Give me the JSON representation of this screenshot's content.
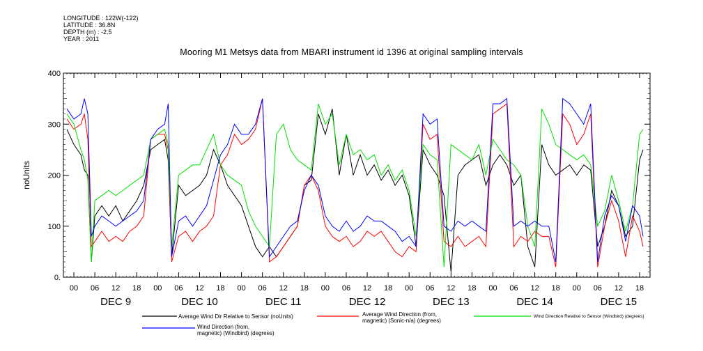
{
  "metadata": {
    "longitude": "LONGITUDE : 122W(-122)",
    "latitude": "LATITUDE : 36.8N",
    "depth": "DEPTH (m) : -2.5",
    "year": "YEAR : 2011"
  },
  "colors": {
    "avg_wind_dir_sensor": "#000000",
    "avg_wind_direction": "#ff0000",
    "wind_dir_windbird": "#0000ff",
    "wind_dir_sensor_windbird": "#00e000"
  },
  "chart_data": {
    "type": "line",
    "title": "Mooring M1 Metsys data from MBARI instrument id 1396 at original sampling intervals",
    "ylabel": "noUnits",
    "xlabel": "",
    "ylim": [
      0,
      400
    ],
    "y_ticks": [
      "0.",
      "100",
      "200",
      "300",
      "400"
    ],
    "xlim": [
      -3,
      165
    ],
    "x_hour_ticks": [
      {
        "h": 0,
        "label": "00"
      },
      {
        "h": 6,
        "label": "06"
      },
      {
        "h": 12,
        "label": "12"
      },
      {
        "h": 18,
        "label": "18"
      },
      {
        "h": 24,
        "label": "00"
      },
      {
        "h": 30,
        "label": "06"
      },
      {
        "h": 36,
        "label": "12"
      },
      {
        "h": 42,
        "label": "18"
      },
      {
        "h": 48,
        "label": "00"
      },
      {
        "h": 54,
        "label": "06"
      },
      {
        "h": 60,
        "label": "12"
      },
      {
        "h": 66,
        "label": "18"
      },
      {
        "h": 72,
        "label": "00"
      },
      {
        "h": 78,
        "label": "06"
      },
      {
        "h": 84,
        "label": "12"
      },
      {
        "h": 90,
        "label": "18"
      },
      {
        "h": 96,
        "label": "00"
      },
      {
        "h": 102,
        "label": "06"
      },
      {
        "h": 108,
        "label": "12"
      },
      {
        "h": 114,
        "label": "18"
      },
      {
        "h": 120,
        "label": "00"
      },
      {
        "h": 126,
        "label": "06"
      },
      {
        "h": 132,
        "label": "12"
      },
      {
        "h": 138,
        "label": "18"
      },
      {
        "h": 144,
        "label": "00"
      },
      {
        "h": 150,
        "label": "06"
      },
      {
        "h": 156,
        "label": "12"
      },
      {
        "h": 162,
        "label": "18"
      }
    ],
    "x_day_labels": [
      {
        "h": 12,
        "label": "DEC  9"
      },
      {
        "h": 36,
        "label": "DEC 10"
      },
      {
        "h": 60,
        "label": "DEC 11"
      },
      {
        "h": 84,
        "label": "DEC 12"
      },
      {
        "h": 108,
        "label": "DEC 13"
      },
      {
        "h": 132,
        "label": "DEC 14"
      },
      {
        "h": 156,
        "label": "DEC 15"
      }
    ],
    "series": [
      {
        "name": "Average Wind Dir Relative to Sensor (noUnits)",
        "color": "#000000",
        "x": [
          -2,
          0,
          2,
          3,
          4,
          5,
          6,
          8,
          10,
          12,
          14,
          16,
          18,
          20,
          22,
          24,
          26,
          27,
          28,
          30,
          32,
          34,
          36,
          38,
          40,
          42,
          44,
          46,
          48,
          50,
          52,
          54,
          56,
          58,
          60,
          62,
          64,
          66,
          68,
          70,
          72,
          74,
          76,
          78,
          80,
          82,
          84,
          86,
          88,
          90,
          92,
          94,
          96,
          98,
          100,
          102,
          104,
          106,
          108,
          110,
          112,
          114,
          116,
          118,
          120,
          122,
          124,
          126,
          128,
          130,
          132,
          134,
          136,
          138,
          140,
          142,
          144,
          146,
          148,
          150,
          152,
          154,
          156,
          158,
          160,
          162,
          163
        ],
        "y": [
          290,
          260,
          240,
          210,
          200,
          30,
          120,
          140,
          120,
          140,
          110,
          130,
          150,
          180,
          250,
          260,
          270,
          230,
          40,
          180,
          160,
          170,
          180,
          200,
          250,
          220,
          180,
          160,
          140,
          100,
          60,
          40,
          60,
          40,
          60,
          80,
          100,
          180,
          190,
          320,
          280,
          330,
          200,
          280,
          200,
          240,
          200,
          220,
          190,
          210,
          180,
          200,
          160,
          60,
          250,
          220,
          200,
          160,
          10,
          200,
          220,
          230,
          240,
          180,
          220,
          240,
          220,
          180,
          200,
          60,
          20,
          260,
          220,
          200,
          210,
          220,
          200,
          220,
          210,
          60,
          100,
          170,
          140,
          80,
          100,
          230,
          250
        ]
      },
      {
        "name": "Average Wind Direction (from, magnetic) (Sonic-n/a) (degrees)",
        "color": "#ff0000",
        "x": [
          -2,
          0,
          2,
          3,
          4,
          5,
          6,
          8,
          10,
          12,
          14,
          16,
          18,
          20,
          22,
          24,
          26,
          27,
          28,
          30,
          32,
          34,
          36,
          38,
          40,
          42,
          44,
          46,
          48,
          50,
          52,
          54,
          56,
          58,
          60,
          62,
          64,
          66,
          68,
          70,
          72,
          74,
          76,
          78,
          80,
          82,
          84,
          86,
          88,
          90,
          92,
          94,
          96,
          98,
          100,
          102,
          104,
          106,
          108,
          110,
          112,
          114,
          116,
          118,
          120,
          122,
          124,
          126,
          128,
          130,
          132,
          134,
          136,
          138,
          140,
          142,
          144,
          146,
          148,
          150,
          152,
          154,
          156,
          158,
          160,
          162,
          163
        ],
        "y": [
          310,
          290,
          300,
          320,
          270,
          60,
          70,
          90,
          70,
          80,
          70,
          90,
          100,
          120,
          270,
          280,
          280,
          250,
          30,
          80,
          90,
          70,
          90,
          100,
          120,
          220,
          240,
          280,
          260,
          270,
          290,
          350,
          30,
          40,
          60,
          80,
          100,
          180,
          200,
          170,
          100,
          80,
          70,
          80,
          60,
          70,
          90,
          80,
          90,
          70,
          50,
          40,
          60,
          50,
          300,
          270,
          280,
          70,
          60,
          80,
          60,
          70,
          80,
          60,
          320,
          330,
          340,
          60,
          80,
          70,
          90,
          80,
          80,
          20,
          320,
          300,
          260,
          280,
          320,
          20,
          100,
          150,
          110,
          40,
          120,
          90,
          60
        ]
      },
      {
        "name": "Wind Direction Relative to Sensor (Windbird) (degrees)",
        "color": "#00e000",
        "x": [
          -2,
          0,
          2,
          3,
          4,
          5,
          6,
          8,
          10,
          12,
          14,
          16,
          18,
          20,
          22,
          24,
          26,
          27,
          28,
          30,
          32,
          34,
          36,
          38,
          40,
          42,
          44,
          46,
          48,
          50,
          52,
          54,
          56,
          58,
          60,
          62,
          64,
          66,
          68,
          70,
          72,
          74,
          76,
          78,
          80,
          82,
          84,
          86,
          88,
          90,
          92,
          94,
          96,
          98,
          100,
          102,
          104,
          106,
          108,
          110,
          112,
          114,
          116,
          118,
          120,
          122,
          124,
          126,
          128,
          130,
          132,
          134,
          136,
          138,
          140,
          142,
          144,
          146,
          148,
          150,
          152,
          154,
          156,
          158,
          160,
          162,
          163
        ],
        "y": [
          320,
          300,
          250,
          230,
          190,
          30,
          150,
          160,
          170,
          160,
          170,
          180,
          190,
          200,
          270,
          280,
          290,
          260,
          60,
          200,
          210,
          220,
          220,
          250,
          280,
          220,
          200,
          190,
          180,
          130,
          100,
          80,
          60,
          280,
          300,
          250,
          230,
          220,
          210,
          340,
          300,
          320,
          220,
          280,
          240,
          250,
          230,
          240,
          200,
          220,
          190,
          210,
          170,
          80,
          260,
          240,
          230,
          20,
          260,
          250,
          240,
          230,
          260,
          200,
          270,
          250,
          230,
          220,
          200,
          100,
          60,
          330,
          300,
          260,
          250,
          240,
          230,
          240,
          220,
          100,
          130,
          200,
          150,
          90,
          140,
          280,
          290
        ]
      },
      {
        "name": "Wind Direction (from, magnetic) (Windbird) (degrees)",
        "color": "#0000ff",
        "x": [
          -2,
          0,
          2,
          3,
          4,
          5,
          6,
          8,
          10,
          12,
          14,
          16,
          18,
          20,
          22,
          24,
          26,
          27,
          28,
          30,
          32,
          34,
          36,
          38,
          40,
          42,
          44,
          46,
          48,
          50,
          52,
          54,
          56,
          58,
          60,
          62,
          64,
          66,
          68,
          70,
          72,
          74,
          76,
          78,
          80,
          82,
          84,
          86,
          88,
          90,
          92,
          94,
          96,
          98,
          100,
          102,
          104,
          106,
          108,
          110,
          112,
          114,
          116,
          118,
          120,
          122,
          124,
          126,
          128,
          130,
          132,
          134,
          136,
          138,
          140,
          142,
          144,
          146,
          148,
          150,
          152,
          154,
          156,
          158,
          160,
          162,
          163
        ],
        "y": [
          330,
          310,
          320,
          350,
          320,
          80,
          100,
          120,
          110,
          100,
          110,
          120,
          130,
          150,
          270,
          290,
          300,
          340,
          40,
          110,
          120,
          100,
          120,
          140,
          190,
          240,
          260,
          300,
          280,
          280,
          300,
          350,
          40,
          60,
          80,
          100,
          110,
          170,
          200,
          180,
          120,
          100,
          90,
          110,
          90,
          100,
          120,
          110,
          110,
          100,
          90,
          70,
          80,
          60,
          320,
          300,
          310,
          100,
          90,
          110,
          100,
          110,
          100,
          90,
          340,
          340,
          350,
          100,
          110,
          100,
          110,
          100,
          100,
          30,
          350,
          340,
          320,
          300,
          340,
          30,
          120,
          160,
          140,
          70,
          140,
          120,
          80
        ]
      }
    ]
  },
  "legend": {
    "items": [
      {
        "text": "Average Wind Dir Relative to Sensor (noUnits)"
      },
      {
        "text": "Average Wind Direction (from,\nmagnetic) (Sonic-n/a) (degrees)"
      },
      {
        "text": "Wind Direction Relative to Sensor (Windbird) (degrees)"
      },
      {
        "text": "Wind Direction (from,\nmagnetic) (Windbird) (degrees)"
      }
    ]
  }
}
